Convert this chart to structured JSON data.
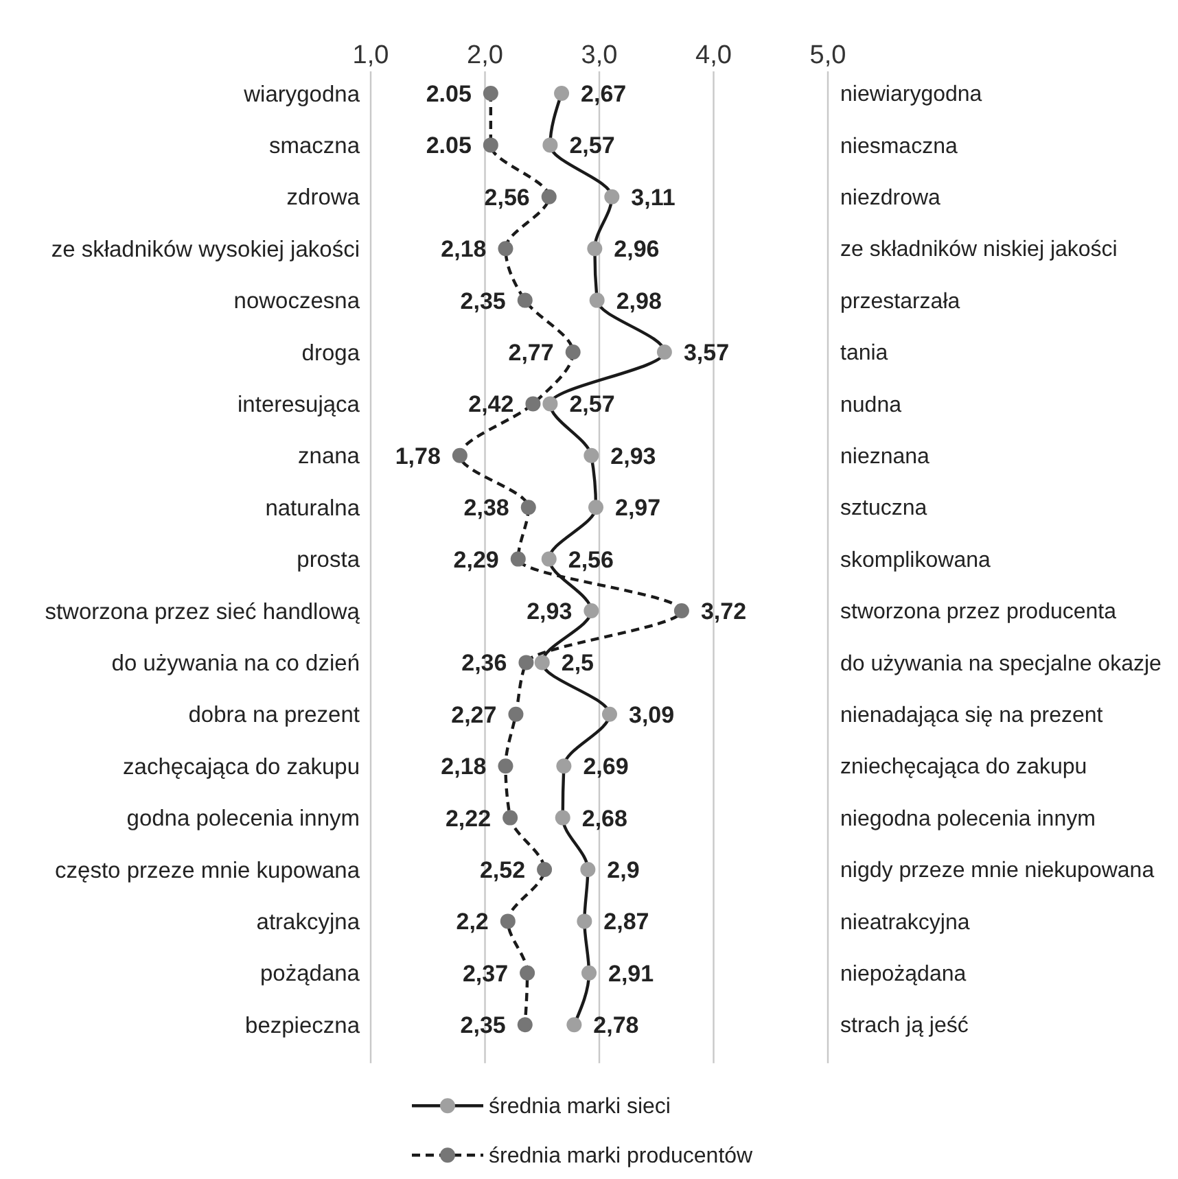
{
  "chart_data": {
    "type": "line",
    "orientation": "horizontal",
    "categories": [
      "wiarygodna",
      "smaczna",
      "zdrowa",
      "ze składników wysokiej jakości",
      "nowoczesna",
      "droga",
      "interesująca",
      "znana",
      "naturalna",
      "prosta",
      "stworzona przez sieć handlową",
      "do używania na co dzień",
      "dobra na prezent",
      "zachęcająca do zakupu",
      "godna polecenia innym",
      "często przeze mnie kupowana",
      "atrakcyjna",
      "pożądana",
      "bezpieczna"
    ],
    "y2_categories": [
      "niewiarygodna",
      "niesmaczna",
      "niezdrowa",
      "ze składników niskiej jakości",
      "przestarzała",
      "tania",
      "nudna",
      "nieznana",
      "sztuczna",
      "skomplikowana",
      "stworzona przez producenta",
      "do używania na specjalne okazje",
      "nienadająca się na prezent",
      "zniechęcająca do zakupu",
      "niegodna polecenia innym",
      "nigdy przeze mnie niekupowana",
      "nieatrakcyjna",
      "niepożądana",
      "strach ją jeść"
    ],
    "series": [
      {
        "name": "średnia marki sieci",
        "color": "#a0a0a0",
        "line_style": "solid",
        "values": [
          2.67,
          2.57,
          3.11,
          2.96,
          2.98,
          3.57,
          2.57,
          2.93,
          2.97,
          2.56,
          2.93,
          2.5,
          3.09,
          2.69,
          2.68,
          2.9,
          2.87,
          2.91,
          2.78
        ],
        "value_labels": [
          "2,67",
          "2,57",
          "3,11",
          "2,96",
          "2,98",
          "3,57",
          "2,57",
          "2,93",
          "2,97",
          "2,56",
          "2,93",
          "2,5",
          "3,09",
          "2,69",
          "2,68",
          "2,9",
          "2,87",
          "2,91",
          "2,78"
        ]
      },
      {
        "name": "średnia marki producentów",
        "color": "#767676",
        "line_style": "dashed",
        "values": [
          2.05,
          2.05,
          2.56,
          2.18,
          2.35,
          2.77,
          2.42,
          1.78,
          2.38,
          2.29,
          3.72,
          2.36,
          2.27,
          2.18,
          2.22,
          2.52,
          2.2,
          2.37,
          2.35
        ],
        "value_labels": [
          "2.05",
          "2.05",
          "2,56",
          "2,18",
          "2,35",
          "2,77",
          "2,42",
          "1,78",
          "2,38",
          "2,29",
          "3,72",
          "2,36",
          "2,27",
          "2,18",
          "2,22",
          "2,52",
          "2,2",
          "2,37",
          "2,35"
        ]
      }
    ],
    "xlim": [
      1,
      5
    ],
    "xticks": [
      {
        "value": 1,
        "label": "1,0"
      },
      {
        "value": 2,
        "label": "2,0"
      },
      {
        "value": 3,
        "label": "3,0"
      },
      {
        "value": 4,
        "label": "4,0"
      },
      {
        "value": 5,
        "label": "5,0"
      }
    ],
    "grid": "x",
    "marker": "circle",
    "legend": "bottom"
  }
}
